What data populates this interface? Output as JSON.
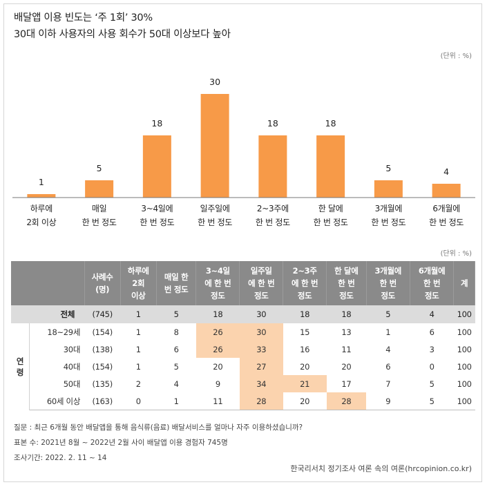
{
  "title_line1": "배달앱 이용 빈도는 ‘주 1회’ 30%",
  "title_line2": "30대 이하 사용자의 사용 회수가 50대 이상보다 높아",
  "unit_label": "(단위 : %)",
  "chart_data": {
    "type": "bar",
    "categories": [
      [
        "하루에",
        "2회 이상"
      ],
      [
        "매일",
        "한 번 정도"
      ],
      [
        "3~4일에",
        "한 번 정도"
      ],
      [
        "일주일에",
        "한 번 정도"
      ],
      [
        "2~3주에",
        "한 번 정도"
      ],
      [
        "한 달에",
        "한 번 정도"
      ],
      [
        "3개월에",
        "한 번 정도"
      ],
      [
        "6개월에",
        "한 번 정도"
      ]
    ],
    "values": [
      1,
      5,
      18,
      30,
      18,
      18,
      5,
      4
    ],
    "bar_color": "#f79a48",
    "axis_color": "#777777",
    "ylim": [
      0,
      30
    ]
  },
  "table": {
    "headers": [
      "",
      "사례수\n(명)",
      "하루에\n2회\n이상",
      "매일 한\n번 정도",
      "3~4일\n에 한 번\n정도",
      "일주일\n에 한 번\n정도",
      "2~3주\n에 한 번\n정도",
      "한 달에\n한 번\n정도",
      "3개월에\n한 번\n정도",
      "6개월에\n한 번\n정도",
      "계"
    ],
    "total": {
      "label": "전체",
      "n": "(745)",
      "values": [
        "1",
        "5",
        "18",
        "30",
        "18",
        "18",
        "5",
        "4",
        "100"
      ]
    },
    "group_label": "연령",
    "rows": [
      {
        "label": "18~29세",
        "n": "(154)",
        "values": [
          "1",
          "8",
          "26",
          "30",
          "15",
          "13",
          "1",
          "6",
          "100"
        ]
      },
      {
        "label": "30대",
        "n": "(138)",
        "values": [
          "1",
          "6",
          "26",
          "33",
          "16",
          "11",
          "4",
          "3",
          "100"
        ]
      },
      {
        "label": "40대",
        "n": "(154)",
        "values": [
          "1",
          "5",
          "20",
          "27",
          "20",
          "20",
          "6",
          "0",
          "100"
        ]
      },
      {
        "label": "50대",
        "n": "(135)",
        "values": [
          "2",
          "4",
          "9",
          "34",
          "21",
          "17",
          "7",
          "5",
          "100"
        ]
      },
      {
        "label": "60세 이상",
        "n": "(163)",
        "values": [
          "0",
          "1",
          "11",
          "28",
          "20",
          "28",
          "9",
          "5",
          "100"
        ]
      }
    ],
    "highlight_color": "#fbd3ae"
  },
  "footnotes": {
    "question": "질문 : 최근 6개월 동안 배달앱을 통해 음식류(음료) 배달서비스를 얼마나 자주 이용하셨습니까?",
    "sample": "표본 수: 2021년 8월 ~ 2022년 2월 사이 배달앱  이용 경험자 745명",
    "period": "조사기간: 2022. 2. 11 ~ 14"
  },
  "source": "한국리서치 정기조사 여론 속의 여론(hrcopinion.co.kr)"
}
